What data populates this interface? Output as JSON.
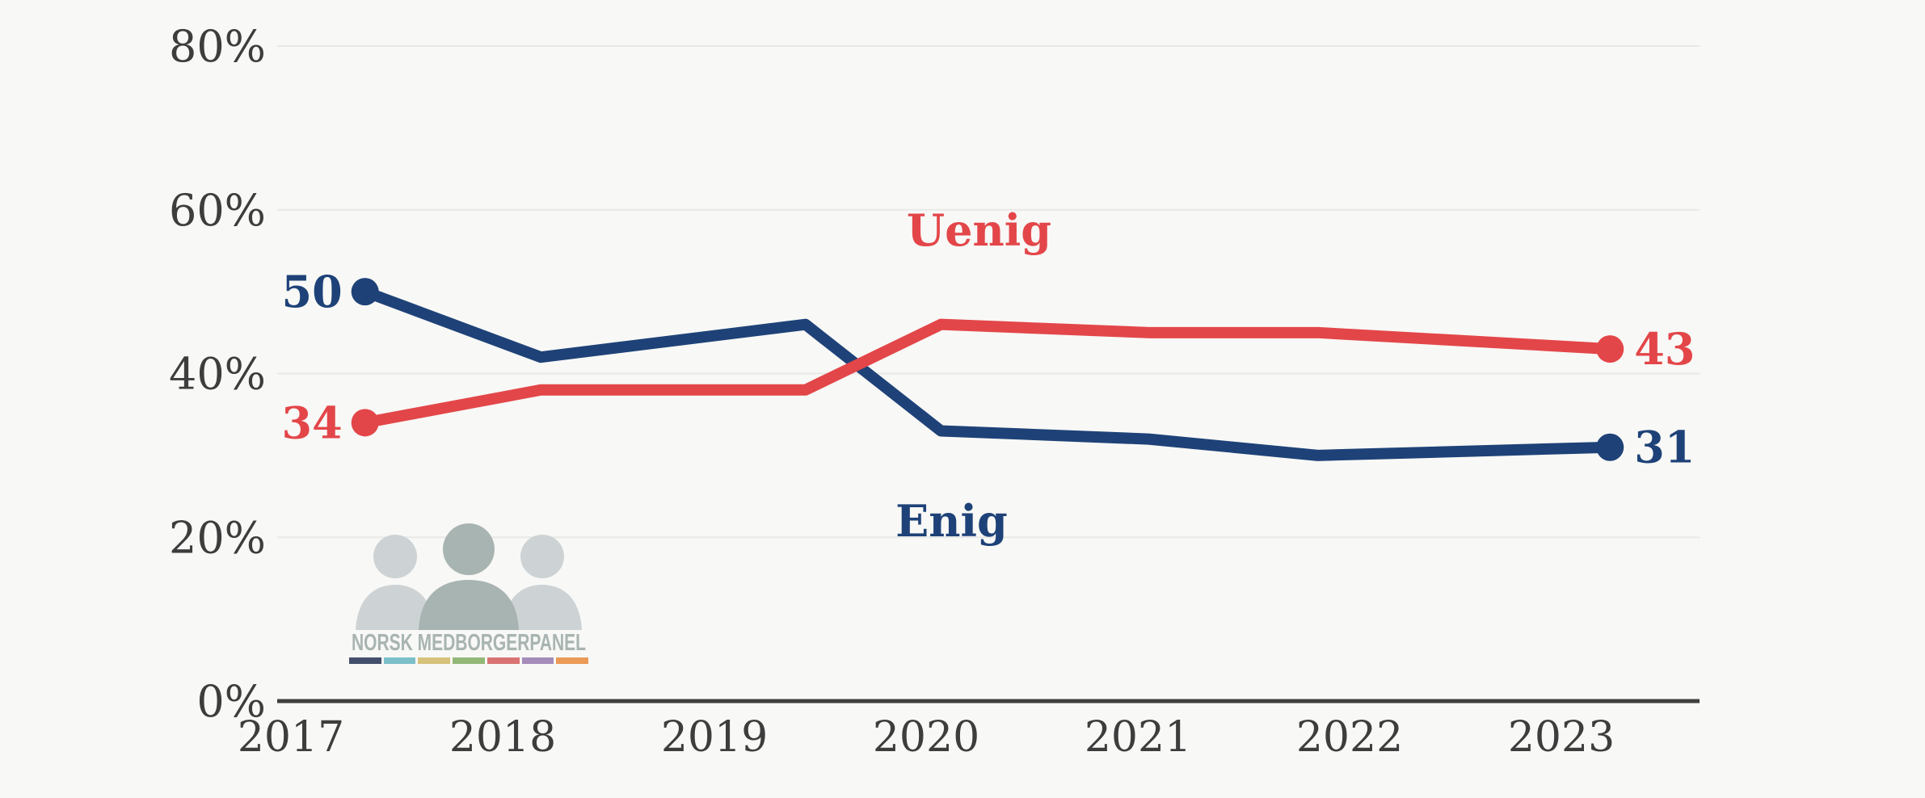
{
  "background": "#f8f8f6",
  "chart_data": {
    "type": "line",
    "title": "",
    "xlabel": "",
    "ylabel": "",
    "x": [
      2017.35,
      2018.18,
      2019.43,
      2020.07,
      2021.05,
      2021.85,
      2023.23
    ],
    "series": [
      {
        "name": "Enig",
        "color": "#1e4278",
        "values": [
          50,
          42,
          46,
          33,
          32,
          30,
          31
        ],
        "start_label": "50",
        "end_label": "31"
      },
      {
        "name": "Uenig",
        "color": "#e34649",
        "values": [
          34,
          38,
          38,
          46,
          45,
          45,
          43
        ],
        "start_label": "34",
        "end_label": "43"
      }
    ],
    "annotations": [
      {
        "text": "Uenig",
        "x": 2020.25,
        "y": 57.5,
        "color": "#e34649"
      },
      {
        "text": "Enig",
        "x": 2020.12,
        "y": 22.0,
        "color": "#1e4278"
      }
    ],
    "x_ticks": [
      2017,
      2018,
      2019,
      2020,
      2021,
      2022,
      2023
    ],
    "x_tick_labels": [
      "2017",
      "2018",
      "2019",
      "2020",
      "2021",
      "2022",
      "2023"
    ],
    "y_ticks": [
      0,
      20,
      40,
      60,
      80
    ],
    "y_tick_labels": [
      "0%",
      "20%",
      "40%",
      "60%",
      "80%"
    ],
    "xlim": [
      2016.94,
      2023.66
    ],
    "ylim": [
      0,
      85
    ],
    "grid": "horizontal",
    "legend_position": "inline-labels",
    "axis_color": "#3f3f3f",
    "tick_text_color": "#3d3d3d",
    "grid_color": "#e8e8e6"
  },
  "logo": {
    "text": "NORSK MEDBORGERPANEL",
    "text_color": "#a8b4b1",
    "figure_side_color": "#cdd3d4",
    "figure_middle_color": "#a8b4b1",
    "bar_colors": [
      "#44506b",
      "#7bbfc9",
      "#d6c27a",
      "#93b877",
      "#d97373",
      "#a58cba",
      "#eb9a57"
    ]
  }
}
